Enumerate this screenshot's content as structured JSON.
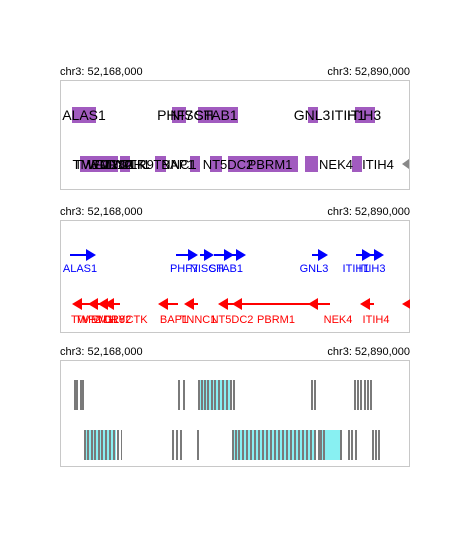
{
  "region": {
    "chrom": "chr3",
    "start_label": "chr3: 52,168,000",
    "end_label": "chr3: 52,890,000"
  },
  "colors": {
    "panel1_box": "#a15bbf",
    "plus_strand": "#0000ff",
    "minus_strand": "#ff0000",
    "exon_gray": "#7a7a7a",
    "exon_cyan": "#88f0f2",
    "arrowhead_gray": "#888888"
  },
  "panels": [
    {
      "name": "gene-boxes-panel",
      "style": "boxes",
      "rows": [
        {
          "labels": [
            "ALAS1",
            "PHF7",
            "NISCH",
            "STAB1",
            "GNL3",
            "ITIH1",
            "ITIH3"
          ]
        },
        {
          "labels": [
            "TWF2",
            "TMEM110",
            "WDR82",
            "GLYCTK",
            "DNAH1",
            "TLR9",
            "TNNC1",
            "BAP1",
            "NT5DC2",
            "PBRM1",
            "NEK4",
            "ITIH4"
          ]
        }
      ]
    },
    {
      "name": "gene-arrows-panel",
      "style": "arrows",
      "rows": [
        {
          "strand": "+",
          "labels": [
            "ALAS1",
            "PHF7",
            "NISCH",
            "STAB1",
            "GNL3",
            "ITIH1",
            "ITIH3"
          ]
        },
        {
          "strand": "-",
          "labels": [
            "TWF2",
            "TMEM110",
            "WDR82",
            "GLYCTK",
            "BAP1",
            "TNNC1",
            "NT5DC2",
            "PBRM1",
            "NEK4",
            "ITIH4"
          ]
        }
      ]
    },
    {
      "name": "exon-structure-panel",
      "style": "exons",
      "rows": [
        {},
        {}
      ]
    }
  ]
}
